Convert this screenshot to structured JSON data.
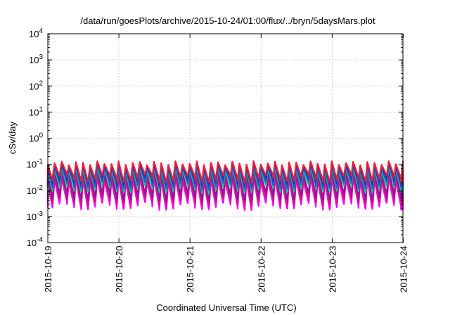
{
  "chart_data": {
    "type": "line",
    "title": "/data/run/goesPlots/archive/2015-10-24/01:00/flux/../bryn/5daysMars.plot",
    "xlabel": "Coordinated Universal Time (UTC)",
    "ylabel": "cSv/day",
    "yscale": "log",
    "ylim": [
      0.0001,
      10000
    ],
    "xlim": [
      "2015-10-19",
      "2015-10-24 01:00"
    ],
    "grid": true,
    "legend": "none",
    "x_tick_labels": [
      "2015-10-19",
      "2015-10-20",
      "2015-10-21",
      "2015-10-22",
      "2015-10-23",
      "2015-10-24"
    ],
    "y_tick_labels": [
      {
        "base": "10",
        "exp": "-4"
      },
      {
        "base": "10",
        "exp": "-3"
      },
      {
        "base": "10",
        "exp": "-2"
      },
      {
        "base": "10",
        "exp": "-1"
      },
      {
        "base": "10",
        "exp": "0"
      },
      {
        "base": "10",
        "exp": "1"
      },
      {
        "base": "10",
        "exp": "2"
      },
      {
        "base": "10",
        "exp": "3"
      },
      {
        "base": "10",
        "exp": "4"
      }
    ],
    "pattern": {
      "description_of_curves": "sawtooth dose-rate traces, each cycle rises sharply then decays",
      "cycles_per_day": 10,
      "cycle_phase_offset": 0.7
    },
    "series": [
      {
        "color": "#ff00ff",
        "peak": 0.026,
        "trough": 0.0026
      },
      {
        "color": "#cc1a6e",
        "peak": 0.036,
        "trough": 0.004
      },
      {
        "color": "#8c1a99",
        "peak": 0.05,
        "trough": 0.006
      },
      {
        "color": "#11cc88",
        "peak": 0.07,
        "trough": 0.012
      },
      {
        "color": "#1f5fd6",
        "peak": 0.085,
        "trough": 0.016
      },
      {
        "color": "#2438b8",
        "peak": 0.095,
        "trough": 0.022
      },
      {
        "color": "#e8203a",
        "peak": 0.11,
        "trough": 0.03
      }
    ]
  }
}
